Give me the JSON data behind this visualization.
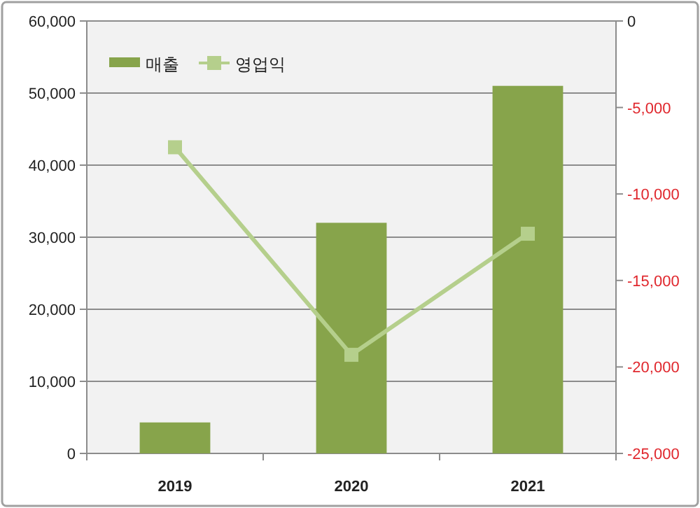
{
  "chart_data": {
    "type": "bar",
    "categories": [
      "2019",
      "2020",
      "2021"
    ],
    "series": [
      {
        "name": "매출",
        "color": "#87a44b",
        "values": [
          4300,
          32000,
          51000
        ]
      },
      {
        "name": "영업익",
        "type": "line",
        "axis": "y2",
        "color": "#b5cf8c",
        "marker": "square",
        "values": [
          -7300,
          -19300,
          -12300
        ]
      }
    ],
    "ylim": [
      0,
      60000
    ],
    "yticks": [
      {
        "value": 0,
        "label": "0"
      },
      {
        "value": 10000,
        "label": "10,000"
      },
      {
        "value": 20000,
        "label": "20,000"
      },
      {
        "value": 30000,
        "label": "30,000"
      },
      {
        "value": 40000,
        "label": "40,000"
      },
      {
        "value": 50000,
        "label": "50,000"
      },
      {
        "value": 60000,
        "label": "60,000"
      }
    ],
    "y2lim": [
      -25000,
      0
    ],
    "y2ticks": [
      {
        "value": -25000,
        "label": "-25,000"
      },
      {
        "value": -20000,
        "label": "-20,000"
      },
      {
        "value": -15000,
        "label": "-15,000"
      },
      {
        "value": -10000,
        "label": "-10,000"
      },
      {
        "value": -5000,
        "label": "-5,000"
      },
      {
        "value": 0,
        "label": "0"
      }
    ],
    "grid": "y",
    "legend": "top left"
  }
}
